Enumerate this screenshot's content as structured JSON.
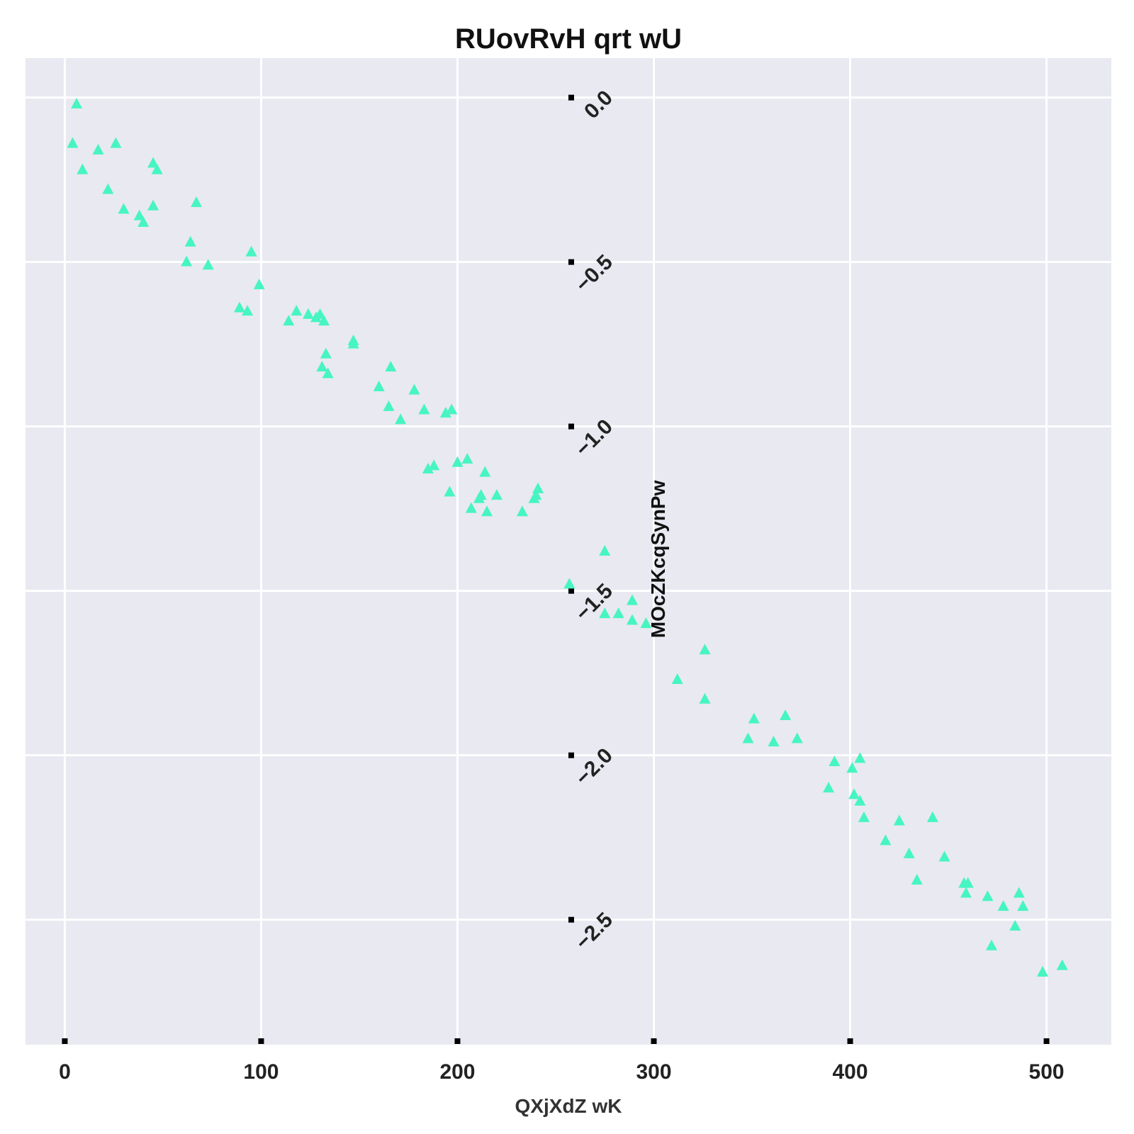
{
  "chart_data": {
    "type": "scatter",
    "title": "RUovRvH qrt wU",
    "xlabel": "QXjXdZ wK",
    "ylabel": "MOcZKcqSynPw",
    "xlim": [
      -20,
      533
    ],
    "ylim": [
      -2.88,
      0.12
    ],
    "xticks": [
      0,
      100,
      200,
      300,
      400,
      500
    ],
    "xtick_labels": [
      "0",
      "100",
      "200",
      "300",
      "400",
      "500"
    ],
    "yticks": [
      0.0,
      -0.5,
      -1.0,
      -1.5,
      -2.0,
      -2.5
    ],
    "ytick_labels": [
      "0.0",
      "−0.5",
      "−1.0",
      "−1.5",
      "−2.0",
      "−2.5"
    ],
    "grid": true,
    "colors": {
      "background": "#e8e9f1",
      "grid": "#ffffff",
      "marker": "#47f5c0",
      "tick": "#000000"
    },
    "marker": "triangle-up",
    "series": [
      {
        "x": [
          6,
          4,
          9,
          17,
          26,
          22,
          30,
          45,
          47,
          38,
          40,
          45,
          67,
          64,
          62,
          73,
          95,
          99,
          89,
          93,
          114,
          118,
          124,
          128,
          130,
          132,
          147,
          147,
          133,
          131,
          134,
          160,
          165,
          166,
          178,
          171,
          183,
          194,
          197,
          185,
          188,
          196,
          200,
          205,
          214,
          207,
          211,
          212,
          215,
          220,
          233,
          239,
          240,
          241,
          257,
          275,
          275,
          282,
          289,
          289,
          296,
          312,
          326,
          326,
          348,
          351,
          361,
          367,
          373,
          389,
          392,
          401,
          402,
          405,
          405,
          407,
          418,
          425,
          430,
          434,
          442,
          448,
          458,
          459,
          460,
          470,
          472,
          478,
          484,
          486,
          488,
          498,
          508
        ],
        "y": [
          -0.02,
          -0.14,
          -0.22,
          -0.16,
          -0.14,
          -0.28,
          -0.34,
          -0.2,
          -0.22,
          -0.36,
          -0.38,
          -0.33,
          -0.32,
          -0.44,
          -0.5,
          -0.51,
          -0.47,
          -0.57,
          -0.64,
          -0.65,
          -0.68,
          -0.65,
          -0.66,
          -0.67,
          -0.66,
          -0.68,
          -0.75,
          -0.74,
          -0.78,
          -0.82,
          -0.84,
          -0.88,
          -0.94,
          -0.82,
          -0.89,
          -0.98,
          -0.95,
          -0.96,
          -0.95,
          -1.13,
          -1.12,
          -1.2,
          -1.11,
          -1.1,
          -1.14,
          -1.25,
          -1.22,
          -1.21,
          -1.26,
          -1.21,
          -1.26,
          -1.22,
          -1.21,
          -1.19,
          -1.48,
          -1.38,
          -1.57,
          -1.57,
          -1.53,
          -1.59,
          -1.6,
          -1.77,
          -1.68,
          -1.83,
          -1.95,
          -1.89,
          -1.96,
          -1.88,
          -1.95,
          -2.1,
          -2.02,
          -2.04,
          -2.12,
          -2.14,
          -2.01,
          -2.19,
          -2.26,
          -2.2,
          -2.3,
          -2.38,
          -2.19,
          -2.31,
          -2.39,
          -2.42,
          -2.39,
          -2.43,
          -2.58,
          -2.46,
          -2.52,
          -2.42,
          -2.46,
          -2.66,
          -2.64
        ]
      }
    ]
  }
}
